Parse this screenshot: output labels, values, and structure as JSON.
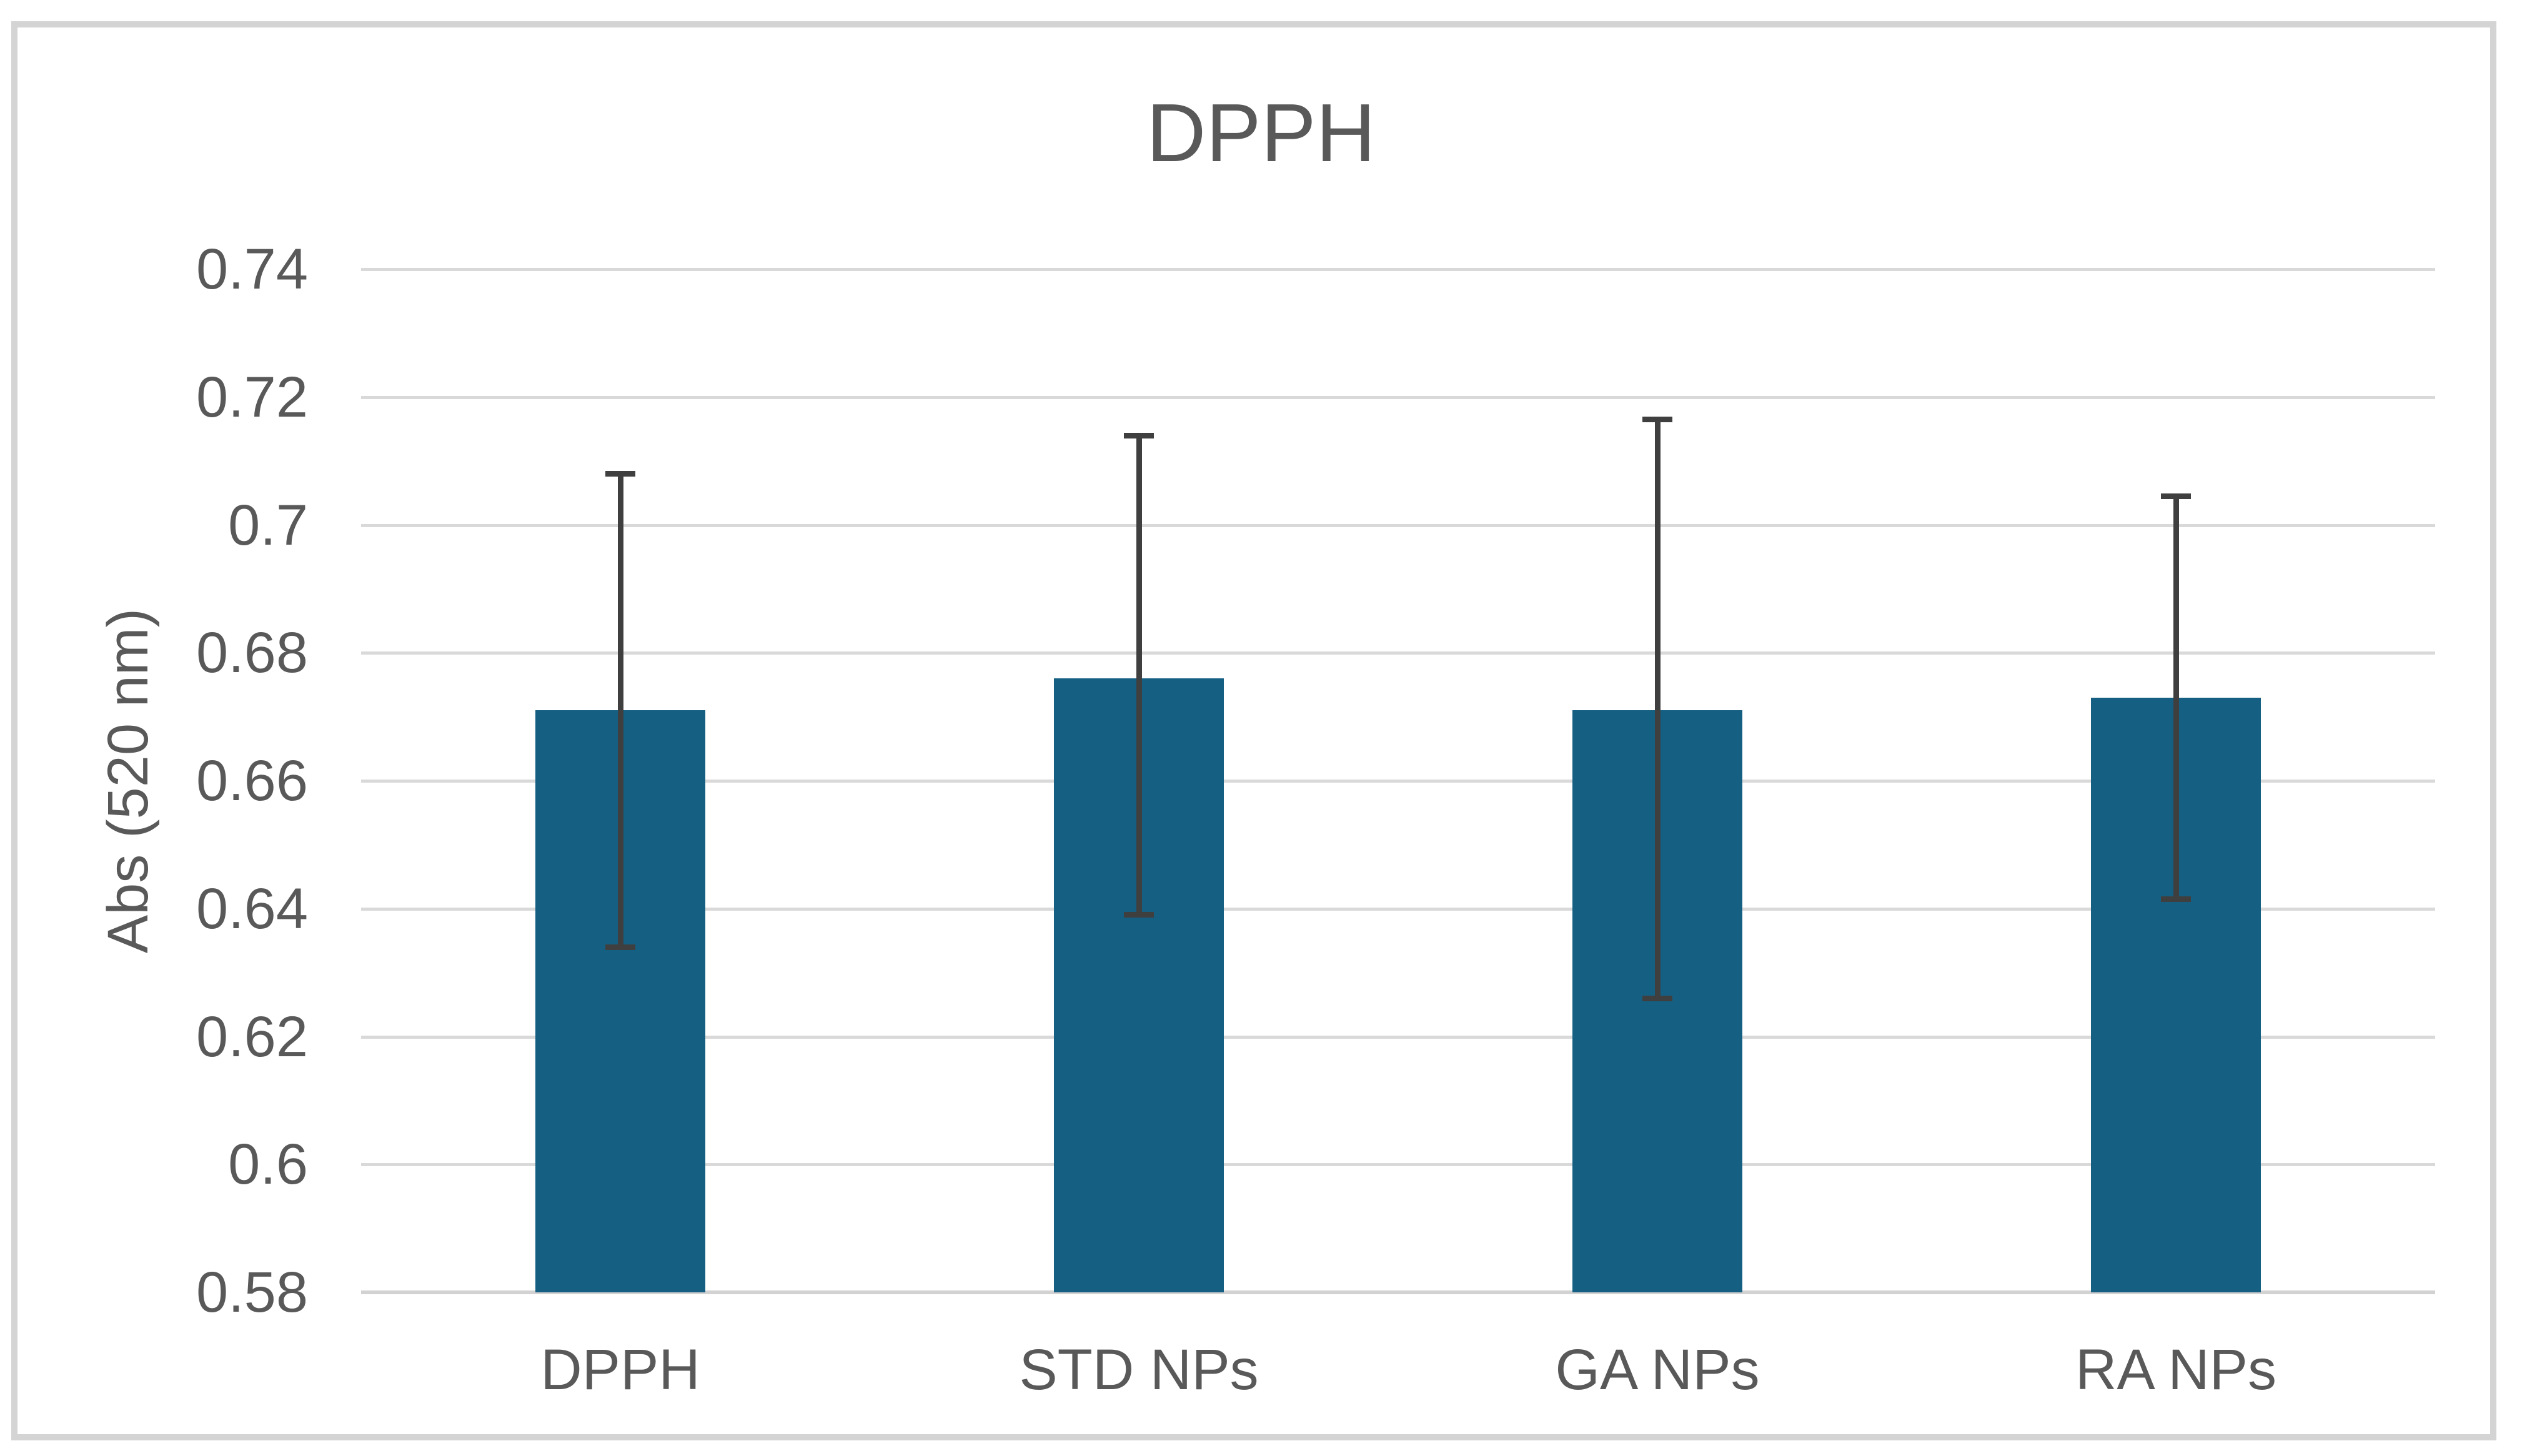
{
  "page": {
    "background": "#ffffff",
    "border_color": "#d4d4d4"
  },
  "chart_data": {
    "type": "bar",
    "title": "DPPH",
    "xlabel": "",
    "ylabel": "Abs (520 nm)",
    "categories": [
      "DPPH",
      "STD NPs",
      "GA NPs",
      "RA NPs"
    ],
    "values": [
      0.671,
      0.676,
      0.671,
      0.673
    ],
    "error_upper": [
      0.708,
      0.714,
      0.7165,
      0.7045
    ],
    "error_lower": [
      0.634,
      0.639,
      0.626,
      0.6415
    ],
    "ylim": [
      0.58,
      0.74
    ],
    "ytick_step": 0.02,
    "ytick_labels": [
      "0.74",
      "0.72",
      "0.7",
      "0.68",
      "0.66",
      "0.64",
      "0.62",
      "0.6",
      "0.58"
    ],
    "grid": "horizontal-gridlines-on",
    "legend_position": "none",
    "bar_color": "#155f83",
    "error_bar_color": "#3f3f3f",
    "gridline_color": "#d9d9d9",
    "text_color": "#595959"
  }
}
